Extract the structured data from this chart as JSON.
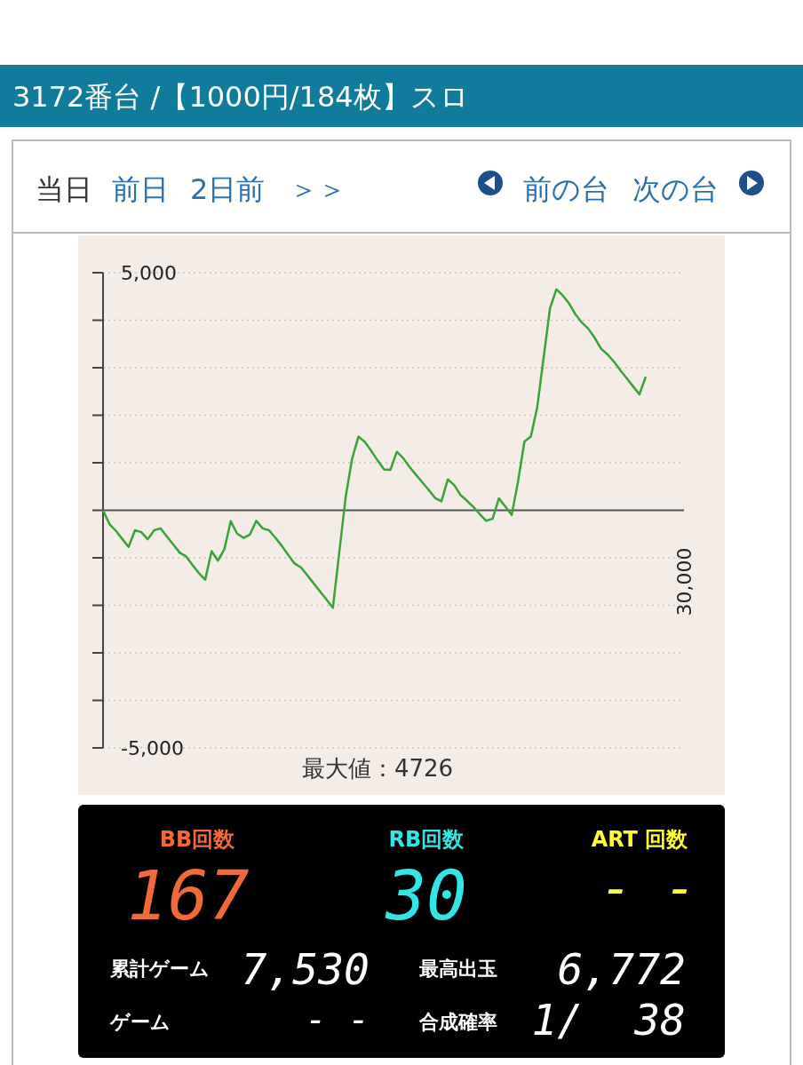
{
  "chart_data": [
    {
      "type": "line",
      "title": "3172番台 /【1000円/184枚】スロ",
      "annotations": [
        "当日",
        "前日",
        "2日前",
        "＞＞",
        "前の台",
        "次の台",
        "最大値：4726",
        "30,000"
      ],
      "series": [
        {
          "color": "#3aa336",
          "values": [
            0,
            -290,
            -430,
            -600,
            -770,
            -420,
            -460,
            -610,
            -420,
            -380,
            -550,
            -720,
            -890,
            -970,
            -1150,
            -1320,
            -1460,
            -860,
            -1060,
            -820,
            -230,
            -490,
            -580,
            -510,
            -220,
            -380,
            -420,
            -580,
            -750,
            -940,
            -1120,
            -1200,
            -1370,
            -1540,
            -1710,
            -1880,
            -2050,
            -880,
            280,
            1080,
            1550,
            1440,
            1250,
            1050,
            860,
            850,
            1230,
            1100,
            910,
            750,
            590,
            430,
            260,
            190,
            650,
            530,
            320,
            200,
            70,
            -80,
            -220,
            -180,
            250,
            80,
            -100,
            610,
            1450,
            1550,
            2170,
            3210,
            4250,
            4650,
            4520,
            4350,
            4120,
            3950,
            3820,
            3630,
            3400,
            3280,
            3130,
            2950,
            2780,
            2610,
            2440,
            2810
          ]
        }
      ],
      "categories": [
        null,
        null,
        null,
        null,
        null,
        null,
        null,
        null,
        null,
        null,
        null,
        null,
        null,
        null,
        null,
        null,
        null,
        null,
        null,
        null,
        null,
        null,
        null,
        null,
        null,
        null,
        null,
        null,
        null,
        null,
        null,
        null,
        null,
        null,
        null,
        null,
        null,
        null,
        null,
        null,
        null,
        null,
        null,
        null,
        null,
        null,
        null,
        null,
        null,
        null,
        null,
        null,
        null,
        null,
        null,
        null,
        null,
        null,
        null,
        null,
        null,
        null,
        null,
        null,
        null,
        null,
        null,
        null,
        null,
        null,
        null,
        null,
        null,
        null,
        null,
        null,
        null,
        null,
        null,
        null,
        null,
        null,
        null,
        null,
        null,
        null
      ],
      "ylim": [
        -5000,
        5000
      ],
      "yticks": [
        {
          "value": 5000,
          "label": "5,000"
        },
        {
          "value": 4000,
          "label": null
        },
        {
          "value": 3000,
          "label": null
        },
        {
          "value": 2000,
          "label": null
        },
        {
          "value": 1000,
          "label": null
        },
        {
          "value": 0,
          "label": null
        },
        {
          "value": -1000,
          "label": null
        },
        {
          "value": -2000,
          "label": null
        },
        {
          "value": -3000,
          "label": null
        },
        {
          "value": -4000,
          "label": null
        },
        {
          "value": -5000,
          "label": "-5,000"
        }
      ],
      "ref_lines": [
        {
          "axis": "y",
          "value": 0,
          "color": "#555555"
        }
      ],
      "grid": "y",
      "marker": "none",
      "line_style": "solid"
    },
    {
      "type": "other",
      "categories": [
        "BB回数",
        "RB回数",
        "ART 回数",
        "累計ゲーム",
        "最高出玉",
        "ゲーム",
        "合成確率"
      ],
      "value_labels": [
        "167",
        "30",
        "- -",
        "7,530",
        "6,772",
        "- -",
        "1/  38"
      ]
    }
  ]
}
